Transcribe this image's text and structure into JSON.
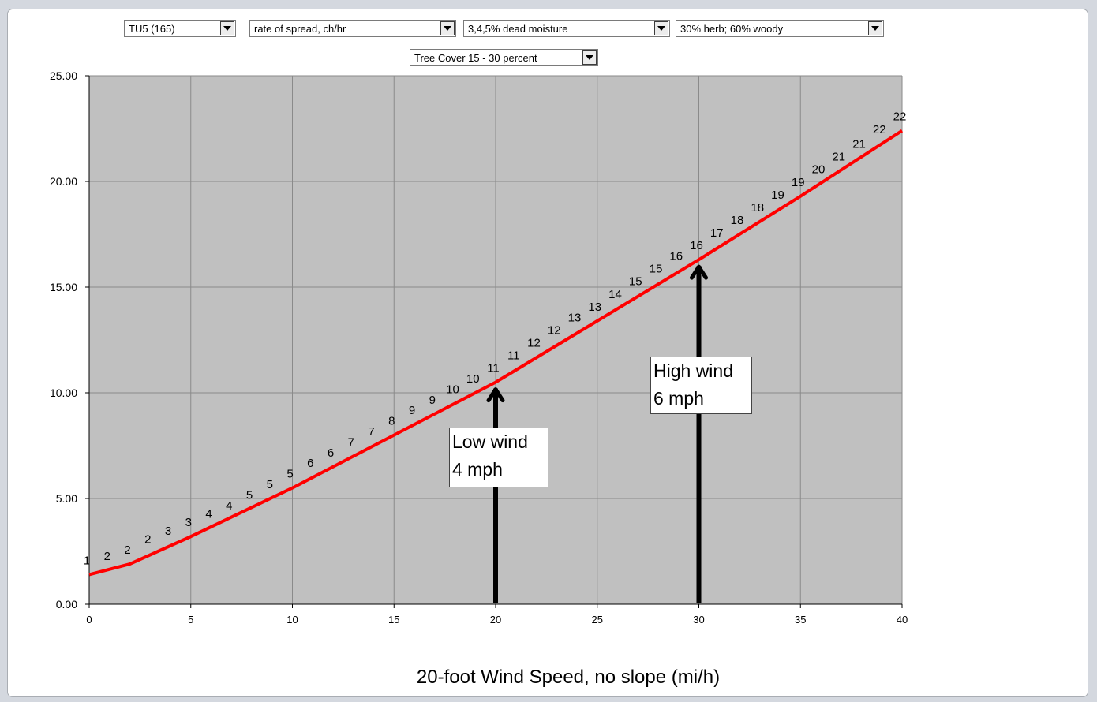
{
  "filters": {
    "fuel_model": "TU5 (165)",
    "output_variable": "rate of spread, ch/hr",
    "dead_moisture": "3,4,5% dead moisture",
    "live_moisture": "30% herb; 60% woody",
    "tree_cover": "Tree Cover 15 - 30 percent"
  },
  "colors": {
    "plot_background": "#c0c0c0",
    "gridline": "#8a8a8a",
    "series_line": "#ff0000",
    "arrow": "#000000"
  },
  "chart_data": {
    "type": "line",
    "title": "",
    "xlabel": "20-foot Wind Speed, no slope (mi/h)",
    "ylabel": "",
    "xlim": [
      0,
      40
    ],
    "ylim": [
      0,
      25
    ],
    "x_ticks": [
      "0",
      "5",
      "10",
      "15",
      "20",
      "25",
      "30",
      "35",
      "40"
    ],
    "y_ticks": [
      "0.00",
      "5.00",
      "10.00",
      "15.00",
      "20.00",
      "25.00"
    ],
    "grid": true,
    "legend": "none",
    "series": [
      {
        "x": [
          0,
          2,
          5,
          10,
          15,
          20,
          25,
          30,
          35,
          40
        ],
        "y": [
          1.4,
          1.9,
          3.2,
          5.5,
          8.0,
          10.5,
          13.4,
          16.3,
          19.3,
          22.4
        ]
      }
    ],
    "point_labels": [
      {
        "x": 0,
        "y": 1.4,
        "label": "1"
      },
      {
        "x": 1,
        "y": 1.6,
        "label": "2"
      },
      {
        "x": 2,
        "y": 1.9,
        "label": "2"
      },
      {
        "x": 3,
        "y": 2.4,
        "label": "2"
      },
      {
        "x": 4,
        "y": 2.8,
        "label": "3"
      },
      {
        "x": 5,
        "y": 3.2,
        "label": "3"
      },
      {
        "x": 6,
        "y": 3.6,
        "label": "4"
      },
      {
        "x": 7,
        "y": 4.0,
        "label": "4"
      },
      {
        "x": 8,
        "y": 4.5,
        "label": "5"
      },
      {
        "x": 9,
        "y": 5.0,
        "label": "5"
      },
      {
        "x": 10,
        "y": 5.5,
        "label": "5"
      },
      {
        "x": 11,
        "y": 6.0,
        "label": "6"
      },
      {
        "x": 12,
        "y": 6.5,
        "label": "6"
      },
      {
        "x": 13,
        "y": 7.0,
        "label": "7"
      },
      {
        "x": 14,
        "y": 7.5,
        "label": "7"
      },
      {
        "x": 15,
        "y": 8.0,
        "label": "8"
      },
      {
        "x": 16,
        "y": 8.5,
        "label": "9"
      },
      {
        "x": 17,
        "y": 9.0,
        "label": "9"
      },
      {
        "x": 18,
        "y": 9.5,
        "label": "10"
      },
      {
        "x": 19,
        "y": 10.0,
        "label": "10"
      },
      {
        "x": 20,
        "y": 10.5,
        "label": "11"
      },
      {
        "x": 21,
        "y": 11.1,
        "label": "11"
      },
      {
        "x": 22,
        "y": 11.7,
        "label": "12"
      },
      {
        "x": 23,
        "y": 12.3,
        "label": "12"
      },
      {
        "x": 24,
        "y": 12.9,
        "label": "13"
      },
      {
        "x": 25,
        "y": 13.4,
        "label": "13"
      },
      {
        "x": 26,
        "y": 14.0,
        "label": "14"
      },
      {
        "x": 27,
        "y": 14.6,
        "label": "15"
      },
      {
        "x": 28,
        "y": 15.2,
        "label": "15"
      },
      {
        "x": 29,
        "y": 15.8,
        "label": "16"
      },
      {
        "x": 30,
        "y": 16.3,
        "label": "16"
      },
      {
        "x": 31,
        "y": 16.9,
        "label": "17"
      },
      {
        "x": 32,
        "y": 17.5,
        "label": "18"
      },
      {
        "x": 33,
        "y": 18.1,
        "label": "18"
      },
      {
        "x": 34,
        "y": 18.7,
        "label": "19"
      },
      {
        "x": 35,
        "y": 19.3,
        "label": "19"
      },
      {
        "x": 36,
        "y": 19.9,
        "label": "20"
      },
      {
        "x": 37,
        "y": 20.5,
        "label": "21"
      },
      {
        "x": 38,
        "y": 21.1,
        "label": "21"
      },
      {
        "x": 39,
        "y": 21.8,
        "label": "22"
      },
      {
        "x": 40,
        "y": 22.4,
        "label": "22"
      }
    ],
    "annotations": [
      {
        "x": 20,
        "y": 10.5,
        "lines": [
          "Low wind",
          "4 mph"
        ]
      },
      {
        "x": 30,
        "y": 16.3,
        "lines": [
          "High wind",
          "6 mph"
        ]
      }
    ]
  }
}
